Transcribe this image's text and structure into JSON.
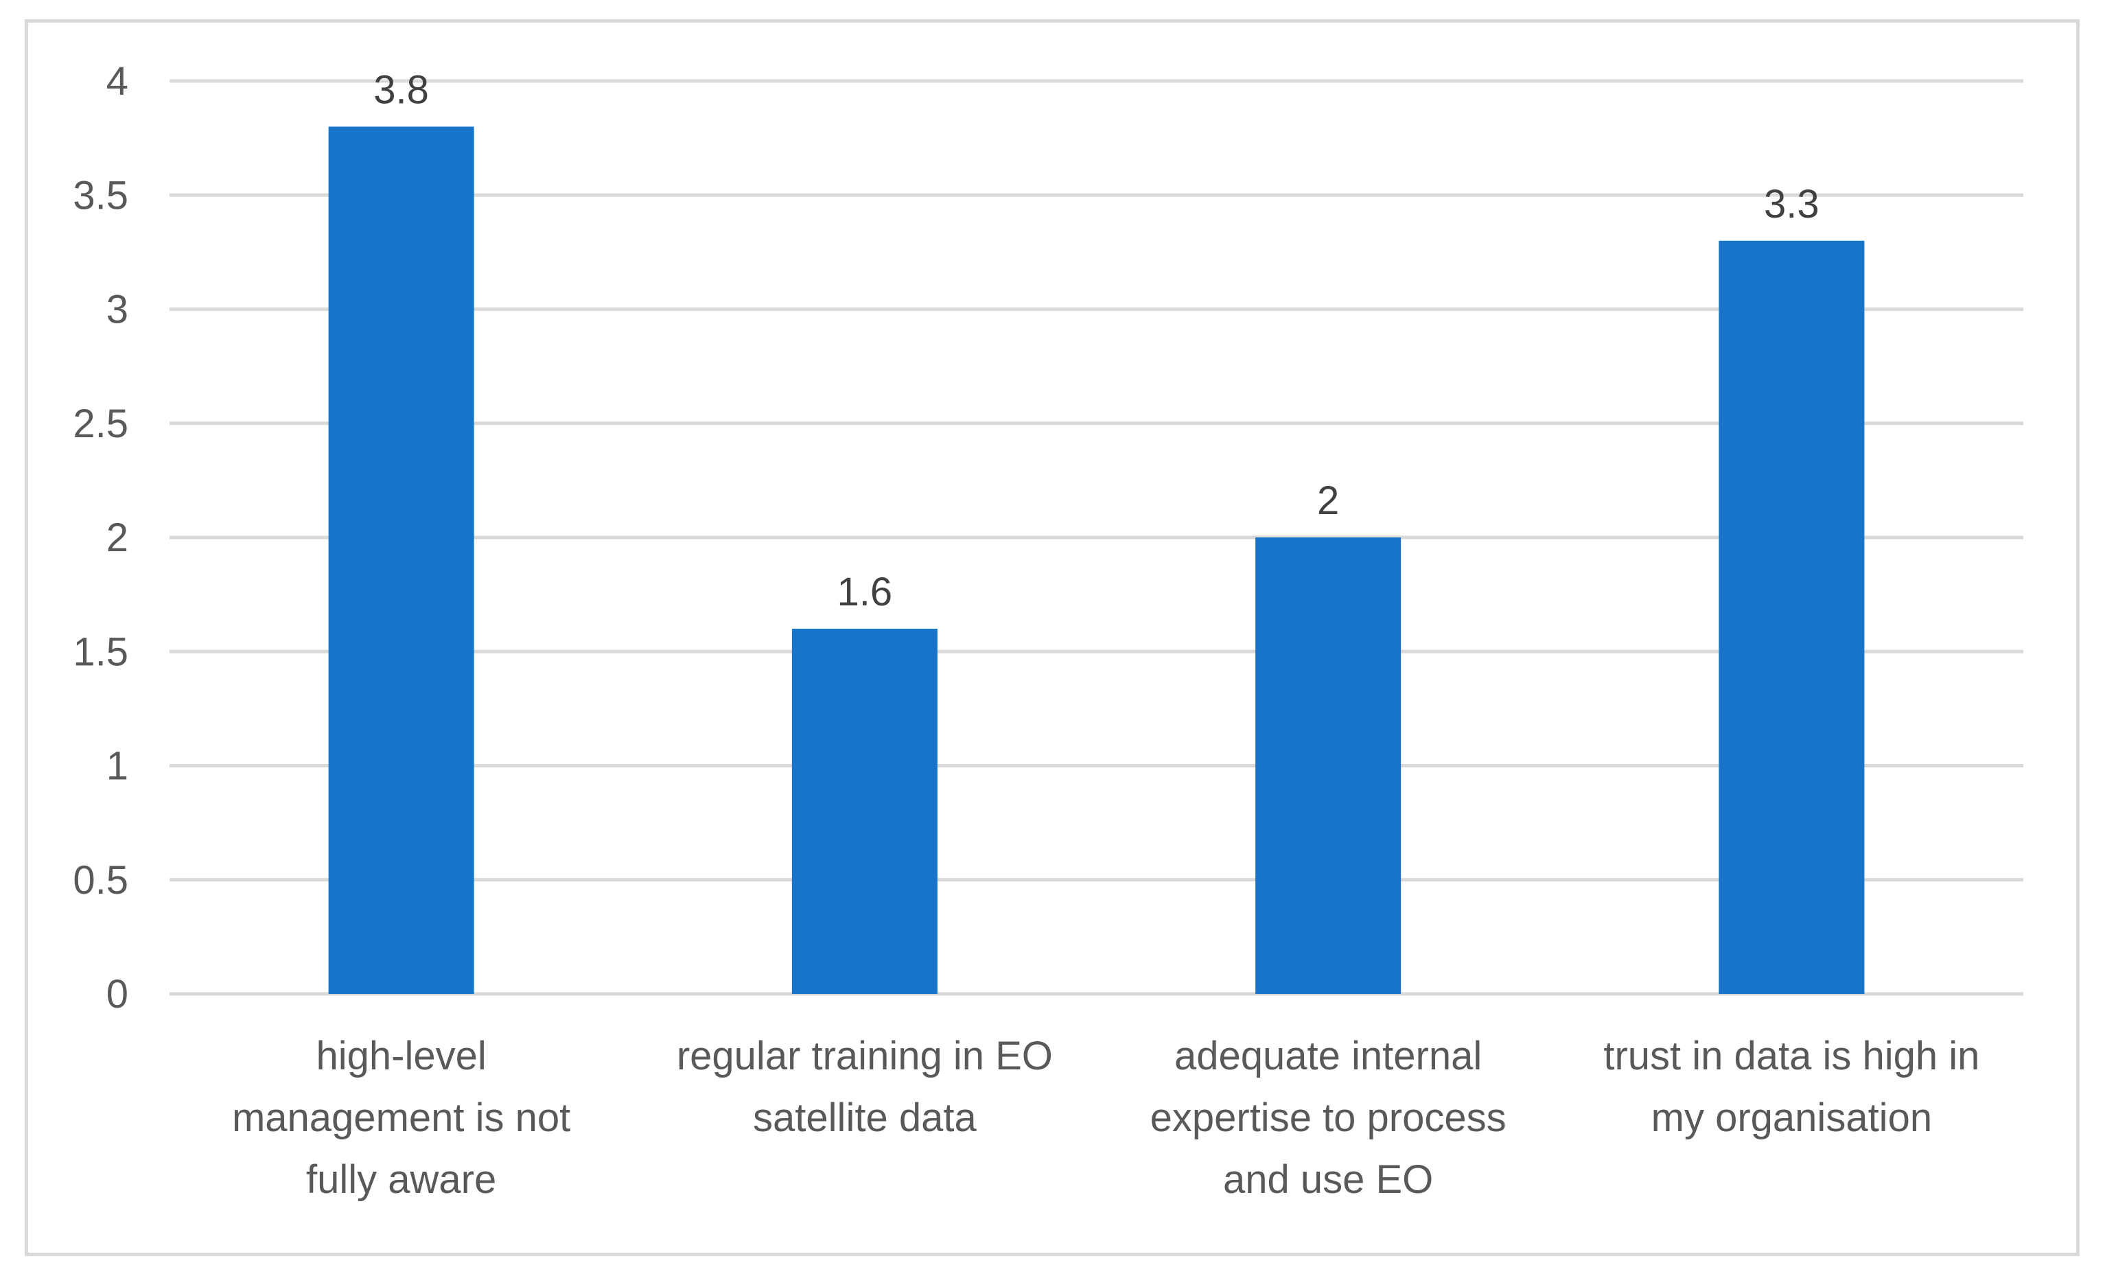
{
  "chart_data": {
    "type": "bar",
    "title": "",
    "xlabel": "",
    "ylabel": "",
    "ylim": [
      0,
      4
    ],
    "yticks": [
      0,
      0.5,
      1,
      1.5,
      2,
      2.5,
      3,
      3.5,
      4
    ],
    "ytick_labels": [
      "0",
      "0.5",
      "1",
      "1.5",
      "2",
      "2.5",
      "3",
      "3.5",
      "4"
    ],
    "grid": true,
    "legend": "none",
    "categories": [
      [
        "high-level",
        "management is not",
        "fully aware"
      ],
      [
        "regular training in EO",
        "satellite data"
      ],
      [
        "adequate internal",
        "expertise to process",
        "and use EO"
      ],
      [
        "trust in data is high in",
        "my organisation"
      ]
    ],
    "values": [
      3.8,
      1.6,
      2,
      3.3
    ],
    "data_labels": [
      "3.8",
      "1.6",
      "2",
      "3.3"
    ],
    "colors": {
      "bar": "#1874c8",
      "grid": "#d9d9d9",
      "frame": "#d9d9d9",
      "tick_text": "#595959",
      "data_label_text": "#404040"
    }
  }
}
